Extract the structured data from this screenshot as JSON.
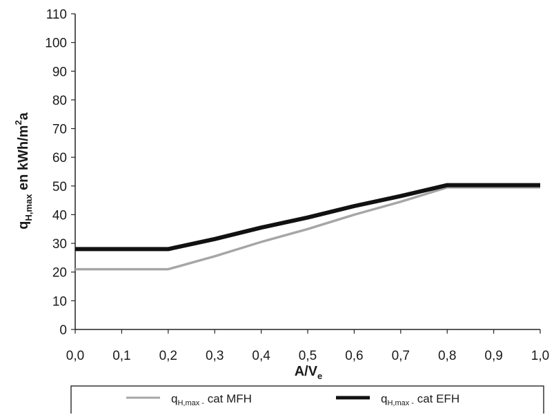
{
  "chart_data": {
    "type": "line",
    "x": [
      0.0,
      0.1,
      0.2,
      0.3,
      0.4,
      0.5,
      0.6,
      0.7,
      0.8,
      0.9,
      1.0
    ],
    "xtick_labels": [
      "0,0",
      "0,1",
      "0,2",
      "0,3",
      "0,4",
      "0,5",
      "0,6",
      "0,7",
      "0,8",
      "0,9",
      "1,0"
    ],
    "yticks": [
      0,
      10,
      20,
      30,
      40,
      50,
      60,
      70,
      80,
      90,
      100,
      110
    ],
    "xlim": [
      0,
      1.0
    ],
    "ylim": [
      0,
      110
    ],
    "xlabel": {
      "main": "A/V",
      "sub": "e"
    },
    "ylabel": {
      "main": "q",
      "sub": "H,max",
      "rest": " en kWh/m",
      "sup": "2",
      "end": "a"
    },
    "grid": false,
    "legend_position": "bottom",
    "series": [
      {
        "legend_main": "q",
        "legend_sub": "H,max -",
        "legend_rest": " cat MFH",
        "color": "#a6a6a6",
        "values": [
          21,
          21,
          21,
          25.5,
          30.5,
          35,
          40,
          44.5,
          49.5,
          49.5,
          49.5
        ]
      },
      {
        "legend_main": "q",
        "legend_sub": "H,max -",
        "legend_rest": " cat EFH",
        "color": "#111111",
        "values": [
          28,
          28,
          28,
          31.5,
          35.5,
          39,
          43,
          46.5,
          50.3,
          50.3,
          50.3
        ]
      }
    ]
  }
}
